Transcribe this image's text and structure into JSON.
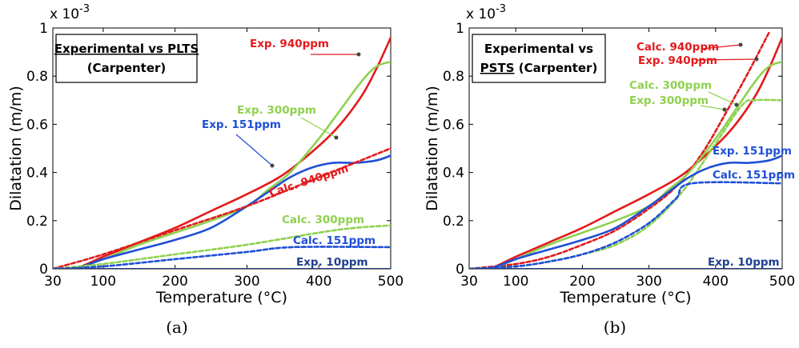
{
  "chart_data": [
    {
      "type": "line",
      "caption": "(a)",
      "title_lines": [
        "Experimental vs PLTS",
        "(Carpenter)"
      ],
      "title_underlined": "Experimental vs PLTS",
      "xlabel": "Temperature (°C)",
      "ylabel": "Dilatation (m/m)",
      "y_multiplier": "x 10",
      "y_multiplier_exp": "-3",
      "xlim": [
        30,
        500
      ],
      "ylim": [
        0,
        1
      ],
      "xticks": [
        "30",
        "100",
        "200",
        "300",
        "400",
        "500"
      ],
      "yticks": [
        "0",
        "0.2",
        "0.4",
        "0.6",
        "0.8",
        "1"
      ],
      "series": [
        {
          "name": "Exp. 940ppm",
          "color": "#e31a1c",
          "dash": false,
          "x": [
            30,
            60,
            100,
            150,
            200,
            250,
            300,
            350,
            400,
            430,
            460,
            480,
            500
          ],
          "y": [
            0.0,
            0.0,
            0.05,
            0.11,
            0.17,
            0.24,
            0.31,
            0.39,
            0.51,
            0.6,
            0.72,
            0.83,
            0.96
          ]
        },
        {
          "name": "Exp. 300ppm",
          "color": "#8fd14f",
          "dash": false,
          "x": [
            30,
            60,
            100,
            150,
            200,
            250,
            300,
            330,
            360,
            400,
            430,
            460,
            480,
            500
          ],
          "y": [
            0.0,
            0.0,
            0.04,
            0.1,
            0.15,
            0.2,
            0.26,
            0.33,
            0.4,
            0.54,
            0.66,
            0.78,
            0.84,
            0.86
          ]
        },
        {
          "name": "Exp. 151ppm",
          "color": "#1f4fd6",
          "dash": false,
          "x": [
            30,
            60,
            100,
            150,
            200,
            250,
            300,
            330,
            360,
            390,
            420,
            450,
            480,
            500
          ],
          "y": [
            0.0,
            0.0,
            0.04,
            0.08,
            0.12,
            0.17,
            0.26,
            0.32,
            0.38,
            0.42,
            0.44,
            0.44,
            0.45,
            0.47
          ]
        },
        {
          "name": "Calc. 940ppm",
          "color": "#e31a1c",
          "dash": true,
          "x": [
            30,
            100,
            200,
            300,
            400,
            500
          ],
          "y": [
            0.0,
            0.06,
            0.16,
            0.26,
            0.38,
            0.5
          ]
        },
        {
          "name": "Calc. 300ppm",
          "color": "#8fd14f",
          "dash": true,
          "x": [
            30,
            100,
            200,
            300,
            400,
            450,
            500
          ],
          "y": [
            0.0,
            0.02,
            0.06,
            0.1,
            0.15,
            0.17,
            0.18
          ]
        },
        {
          "name": "Calc. 151ppm",
          "color": "#1f4fd6",
          "dash": true,
          "x": [
            30,
            100,
            200,
            300,
            365,
            500
          ],
          "y": [
            0.0,
            0.01,
            0.04,
            0.07,
            0.09,
            0.09
          ]
        },
        {
          "name": "Exp. 10ppm",
          "color": "#1f3f8f",
          "dash": false,
          "x": [
            30,
            500
          ],
          "y": [
            0.0,
            0.0
          ]
        }
      ]
    },
    {
      "type": "line",
      "caption": "(b)",
      "title_lines": [
        "Experimental vs",
        "PSTS (Carpenter)"
      ],
      "title_underlined": "PSTS",
      "xlabel": "Temperature (°C)",
      "ylabel": "Dilatation (m/m)",
      "y_multiplier": "x 10",
      "y_multiplier_exp": "-3",
      "xlim": [
        30,
        500
      ],
      "ylim": [
        0,
        1
      ],
      "xticks": [
        "30",
        "100",
        "200",
        "300",
        "400",
        "500"
      ],
      "yticks": [
        "0",
        "0.2",
        "0.4",
        "0.6",
        "0.8",
        "1"
      ],
      "series": [
        {
          "name": "Exp. 940ppm",
          "color": "#e31a1c",
          "dash": false,
          "x": [
            30,
            60,
            100,
            150,
            200,
            250,
            300,
            350,
            400,
            430,
            460,
            480,
            500
          ],
          "y": [
            0.0,
            0.0,
            0.05,
            0.11,
            0.17,
            0.24,
            0.31,
            0.39,
            0.51,
            0.6,
            0.72,
            0.83,
            0.96
          ]
        },
        {
          "name": "Calc. 940ppm",
          "color": "#e31a1c",
          "dash": true,
          "x": [
            30,
            100,
            150,
            200,
            250,
            300,
            340,
            380,
            420,
            450,
            480
          ],
          "y": [
            0.0,
            0.02,
            0.05,
            0.1,
            0.16,
            0.25,
            0.34,
            0.48,
            0.67,
            0.82,
            0.98
          ]
        },
        {
          "name": "Exp. 300ppm",
          "color": "#8fd14f",
          "dash": false,
          "x": [
            30,
            60,
            100,
            150,
            200,
            250,
            300,
            330,
            360,
            400,
            430,
            460,
            480,
            500
          ],
          "y": [
            0.0,
            0.0,
            0.04,
            0.1,
            0.15,
            0.2,
            0.26,
            0.33,
            0.4,
            0.54,
            0.66,
            0.78,
            0.84,
            0.86
          ]
        },
        {
          "name": "Calc. 300ppm",
          "color": "#8fd14f",
          "dash": true,
          "x": [
            30,
            100,
            150,
            200,
            250,
            300,
            350,
            400,
            440,
            460,
            500
          ],
          "y": [
            0.0,
            0.01,
            0.03,
            0.06,
            0.1,
            0.18,
            0.32,
            0.52,
            0.68,
            0.7,
            0.7
          ]
        },
        {
          "name": "Exp. 151ppm",
          "color": "#1f4fd6",
          "dash": false,
          "x": [
            30,
            60,
            100,
            150,
            200,
            250,
            300,
            330,
            360,
            390,
            420,
            450,
            480,
            500
          ],
          "y": [
            0.0,
            0.0,
            0.04,
            0.08,
            0.12,
            0.17,
            0.26,
            0.32,
            0.38,
            0.42,
            0.44,
            0.44,
            0.45,
            0.47
          ]
        },
        {
          "name": "Calc. 151ppm",
          "color": "#1f4fd6",
          "dash": true,
          "x": [
            30,
            100,
            150,
            200,
            250,
            300,
            340,
            365,
            500
          ],
          "y": [
            0.0,
            0.01,
            0.03,
            0.06,
            0.11,
            0.19,
            0.29,
            0.355,
            0.355
          ]
        },
        {
          "name": "Exp. 10ppm",
          "color": "#1f3f8f",
          "dash": false,
          "x": [
            30,
            500
          ],
          "y": [
            0.0,
            0.0
          ]
        }
      ]
    }
  ]
}
